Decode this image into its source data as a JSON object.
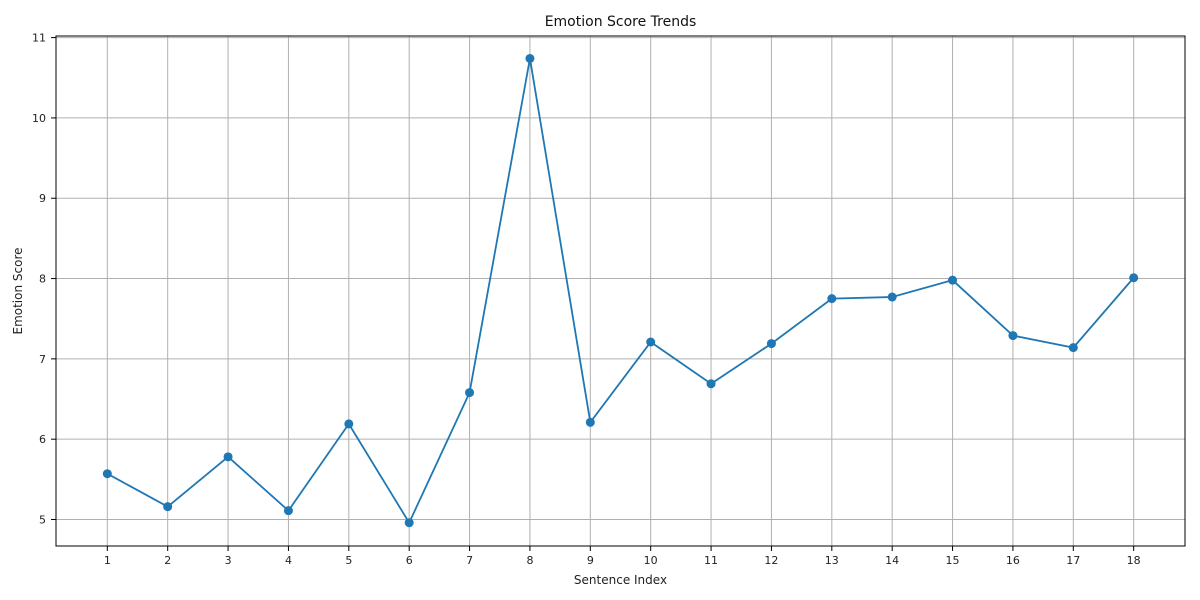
{
  "chart_data": {
    "type": "line",
    "title": "Emotion Score Trends",
    "xlabel": "Sentence Index",
    "ylabel": "Emotion Score",
    "x": [
      1,
      2,
      3,
      4,
      5,
      6,
      7,
      8,
      9,
      10,
      11,
      12,
      13,
      14,
      15,
      16,
      17,
      18
    ],
    "series": [
      {
        "values": [
          5.57,
          5.16,
          5.78,
          5.11,
          6.19,
          4.96,
          6.58,
          10.74,
          6.21,
          7.21,
          6.69,
          7.19,
          7.75,
          7.77,
          7.98,
          7.29,
          7.14,
          8.01
        ],
        "color": "#1f77b4",
        "marker": "circle"
      }
    ],
    "xlim": [
      0.15,
      18.85
    ],
    "ylim": [
      4.67,
      11.02
    ],
    "xticks": [
      "1",
      "2",
      "3",
      "4",
      "5",
      "6",
      "7",
      "8",
      "9",
      "10",
      "11",
      "12",
      "13",
      "14",
      "15",
      "16",
      "17",
      "18"
    ],
    "yticks": [
      "5",
      "6",
      "7",
      "8",
      "9",
      "10",
      "11"
    ],
    "grid": true
  }
}
